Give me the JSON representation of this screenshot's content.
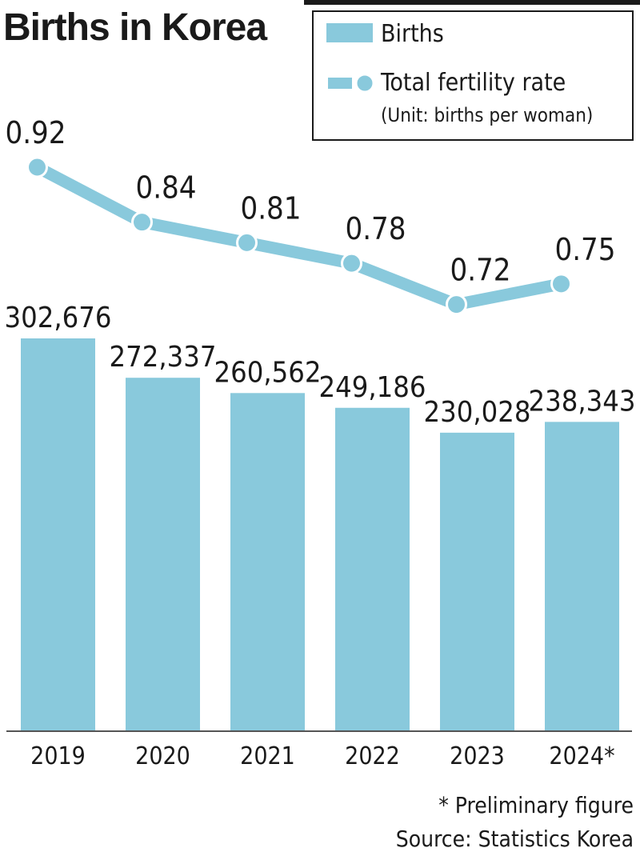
{
  "chart_data": {
    "type": "bar",
    "title": "Births in Korea",
    "categories": [
      "2019",
      "2020",
      "2021",
      "2022",
      "2023",
      "2024*"
    ],
    "series": [
      {
        "name": "Births",
        "type": "bar",
        "values": [
          302676,
          272337,
          260562,
          249186,
          230028,
          238343
        ],
        "value_labels": [
          "302,676",
          "272,337",
          "260,562",
          "249,186",
          "230,028",
          "238,343"
        ]
      },
      {
        "name": "Total fertility rate",
        "type": "line",
        "values": [
          0.92,
          0.84,
          0.81,
          0.78,
          0.72,
          0.75
        ],
        "value_labels": [
          "0.92",
          "0.84",
          "0.81",
          "0.78",
          "0.72",
          "0.75"
        ]
      }
    ],
    "legend": {
      "position": "top-right",
      "unit_note": "(Unit: births per woman)"
    },
    "grid": false,
    "colors": {
      "bar": "#89c9dc",
      "line": "#89c9dc"
    },
    "footnotes": [
      "* Preliminary figure",
      "Source: Statistics Korea"
    ]
  }
}
